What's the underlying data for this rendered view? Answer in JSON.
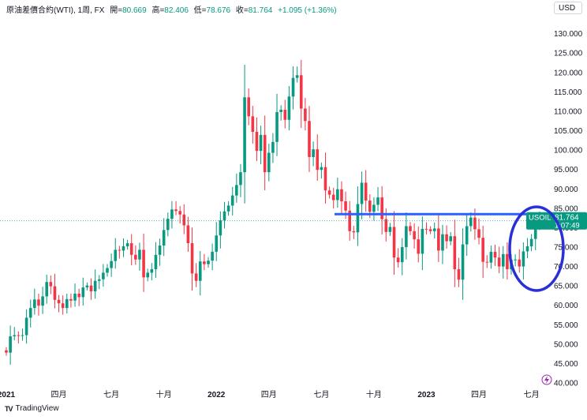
{
  "legend": {
    "name": "原油差價合約(WTI), 1周, FX",
    "open_label": "開=",
    "open_value": "80.669",
    "high_label": "高=",
    "high_value": "82.406",
    "low_label": "低=",
    "low_value": "78.676",
    "close_label": "收=",
    "close_value": "81.764",
    "change": "+1.095 (+1.36%)"
  },
  "currency_button": "USD",
  "brand": {
    "logo": "TV",
    "name": "TradingView"
  },
  "price_badge": {
    "symbol": "USOIL",
    "price": "81.764",
    "countdown": "1:07:49"
  },
  "colors": {
    "up": "#089981",
    "down": "#f23645",
    "hline": "#2962ff",
    "circle": "#2b2fd6",
    "axis_text": "#131722",
    "dotted": "#089981"
  },
  "chart_data": {
    "type": "candlestick",
    "title": "原油差價合約(WTI), 1周, FX",
    "interval": "1周",
    "ylim": [
      40,
      133
    ],
    "y_ticks": [
      40,
      45,
      50,
      55,
      60,
      65,
      70,
      75,
      80,
      85,
      90,
      95,
      100,
      105,
      110,
      115,
      120,
      125,
      130
    ],
    "y_tick_labels": [
      "40.000",
      "45.000",
      "50.000",
      "55.000",
      "60.000",
      "65.000",
      "70.000",
      "75.000",
      "80.000",
      "85.000",
      "90.000",
      "95.000",
      "100.000",
      "105.000",
      "110.000",
      "115.000",
      "120.000",
      "125.000",
      "130.000"
    ],
    "x_labels": [
      {
        "label": "2021",
        "index": 0,
        "bold": true
      },
      {
        "label": "四月",
        "index": 13,
        "bold": false
      },
      {
        "label": "七月",
        "index": 26,
        "bold": false
      },
      {
        "label": "十月",
        "index": 39,
        "bold": false
      },
      {
        "label": "2022",
        "index": 52,
        "bold": true
      },
      {
        "label": "四月",
        "index": 65,
        "bold": false
      },
      {
        "label": "七月",
        "index": 78,
        "bold": false
      },
      {
        "label": "十月",
        "index": 91,
        "bold": false
      },
      {
        "label": "2023",
        "index": 104,
        "bold": true
      },
      {
        "label": "四月",
        "index": 117,
        "bold": false
      },
      {
        "label": "七月",
        "index": 130,
        "bold": false
      }
    ],
    "horizontal_line": 83.5,
    "last_price": 81.764,
    "closes": [
      47.8,
      52.0,
      52.3,
      52.2,
      52.3,
      56.8,
      59.3,
      61.5,
      59.9,
      62.3,
      66.0,
      64.9,
      61.4,
      60.5,
      59.3,
      61.6,
      61.2,
      63.0,
      62.1,
      64.6,
      65.1,
      63.6,
      66.3,
      66.7,
      68.4,
      69.6,
      71.4,
      74.3,
      74.1,
      75.2,
      76.0,
      73.0,
      71.8,
      74.3,
      67.2,
      68.4,
      69.3,
      73.0,
      75.4,
      79.4,
      82.3,
      84.7,
      84.3,
      83.4,
      80.6,
      76.0,
      68.2,
      66.3,
      71.3,
      70.6,
      71.5,
      73.8,
      78.0,
      81.9,
      84.2,
      85.7,
      88.3,
      91.0,
      94.3,
      113.6,
      108.7,
      104.7,
      99.8,
      103.9,
      94.3,
      99.3,
      102.1,
      109.8,
      110.4,
      107.8,
      113.8,
      118.6,
      119.3,
      110.7,
      107.5,
      98.2,
      100.2,
      94.9,
      95.6,
      89.6,
      88.5,
      87.1,
      89.9,
      86.8,
      84.4,
      79.1,
      78.8,
      86.1,
      91.6,
      87.0,
      84.1,
      85.9,
      87.8,
      82.2,
      78.9,
      80.2,
      72.3,
      71.1,
      75.0,
      80.4,
      79.1,
      77.0,
      73.3,
      79.7,
      79.6,
      79.1,
      79.8,
      74.1,
      78.3,
      76.5,
      77.8,
      69.3,
      66.6,
      75.7,
      80.4,
      82.6,
      79.6,
      77.4,
      71.2,
      71.0,
      73.8,
      72.3,
      70.0,
      73.2,
      69.3,
      71.7,
      71.8,
      70.0,
      73.9,
      75.2,
      77.1,
      80.7,
      81.8
    ],
    "opens": [
      48.4,
      47.8,
      52.0,
      52.3,
      52.2,
      52.3,
      56.8,
      59.3,
      61.5,
      59.9,
      62.3,
      66.0,
      64.9,
      61.4,
      60.5,
      59.3,
      61.6,
      61.2,
      63.0,
      62.1,
      64.6,
      65.1,
      63.6,
      66.3,
      66.7,
      68.4,
      69.6,
      71.4,
      74.3,
      74.1,
      75.2,
      76.0,
      73.0,
      71.8,
      74.3,
      67.2,
      68.4,
      69.3,
      73.0,
      75.4,
      79.4,
      82.3,
      84.7,
      84.3,
      83.4,
      80.6,
      76.0,
      68.2,
      66.3,
      71.3,
      70.6,
      71.5,
      73.8,
      78.0,
      81.9,
      84.2,
      85.7,
      88.3,
      91.0,
      94.3,
      113.6,
      108.7,
      104.7,
      99.8,
      103.9,
      94.3,
      99.3,
      102.1,
      109.8,
      110.4,
      107.8,
      113.8,
      118.6,
      119.3,
      110.7,
      107.5,
      98.2,
      100.2,
      94.9,
      95.6,
      89.6,
      88.5,
      87.1,
      89.9,
      86.8,
      84.4,
      79.1,
      78.8,
      86.1,
      91.6,
      87.0,
      84.1,
      85.9,
      87.8,
      82.2,
      78.9,
      80.2,
      72.3,
      71.1,
      75.0,
      80.4,
      79.1,
      77.0,
      73.3,
      79.7,
      79.6,
      79.1,
      79.8,
      74.1,
      78.3,
      76.5,
      77.8,
      69.3,
      66.6,
      75.7,
      80.4,
      82.6,
      79.6,
      77.4,
      71.2,
      71.0,
      73.8,
      72.3,
      70.0,
      73.2,
      69.3,
      71.7,
      71.8,
      70.0,
      73.9,
      75.2,
      77.1,
      80.7
    ]
  }
}
